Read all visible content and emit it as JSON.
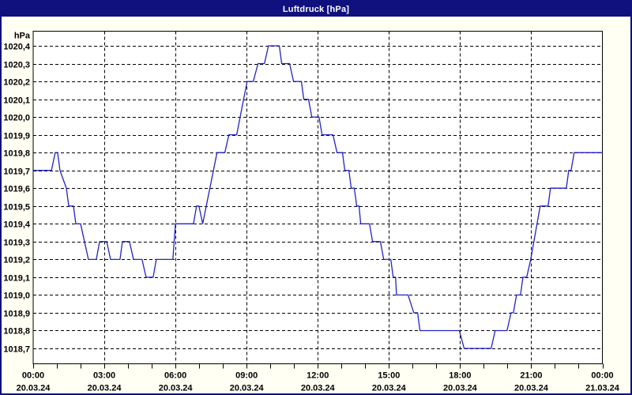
{
  "window": {
    "title": "Luftdruck [hPa]"
  },
  "colors": {
    "titlebar_bg": "#10107e",
    "frame_border": "#10107e",
    "line": "#2222c8",
    "grid": "#000000",
    "plot_bg": "#ffffff",
    "page_bg": "#fffff4",
    "title_text": "#ffffff",
    "label_text": "#000000"
  },
  "chart_data": {
    "type": "line",
    "title": "Luftdruck [hPa]",
    "unit_label": "hPa",
    "xlabel": "",
    "ylabel": "hPa",
    "ylim": [
      1018.7,
      1020.4
    ],
    "xlim_hours": [
      0,
      24
    ],
    "grid": "dashed",
    "legend": "none",
    "yticks": [
      {
        "value": 1020.4,
        "label": "1020,4"
      },
      {
        "value": 1020.3,
        "label": "1020,3"
      },
      {
        "value": 1020.2,
        "label": "1020,2"
      },
      {
        "value": 1020.1,
        "label": "1020,1"
      },
      {
        "value": 1020.0,
        "label": "1020,0"
      },
      {
        "value": 1019.9,
        "label": "1019,9"
      },
      {
        "value": 1019.8,
        "label": "1019,8"
      },
      {
        "value": 1019.7,
        "label": "1019,7"
      },
      {
        "value": 1019.6,
        "label": "1019,6"
      },
      {
        "value": 1019.5,
        "label": "1019,5"
      },
      {
        "value": 1019.4,
        "label": "1019,4"
      },
      {
        "value": 1019.3,
        "label": "1019,3"
      },
      {
        "value": 1019.2,
        "label": "1019,2"
      },
      {
        "value": 1019.1,
        "label": "1019,1"
      },
      {
        "value": 1019.0,
        "label": "1019,0"
      },
      {
        "value": 1018.9,
        "label": "1018,9"
      },
      {
        "value": 1018.8,
        "label": "1018,8"
      },
      {
        "value": 1018.7,
        "label": "1018,7"
      }
    ],
    "xticks": [
      {
        "hour": 0,
        "time": "00:00",
        "date": "20.03.24"
      },
      {
        "hour": 3,
        "time": "03:00",
        "date": "20.03.24"
      },
      {
        "hour": 6,
        "time": "06:00",
        "date": "20.03.24"
      },
      {
        "hour": 9,
        "time": "09:00",
        "date": "20.03.24"
      },
      {
        "hour": 12,
        "time": "12:00",
        "date": "20.03.24"
      },
      {
        "hour": 15,
        "time": "15:00",
        "date": "20.03.24"
      },
      {
        "hour": 18,
        "time": "18:00",
        "date": "20.03.24"
      },
      {
        "hour": 21,
        "time": "21:00",
        "date": "20.03.24"
      },
      {
        "hour": 24,
        "time": "00:00",
        "date": "21.03.24"
      }
    ],
    "minor_tick_every_hours": 1,
    "vertical_grid_hours": [
      3,
      6,
      9,
      12,
      15,
      18,
      21
    ],
    "series": [
      {
        "name": "Luftdruck",
        "points": [
          [
            0.0,
            1019.7
          ],
          [
            0.77,
            1019.7
          ],
          [
            0.93,
            1019.8
          ],
          [
            1.03,
            1019.8
          ],
          [
            1.13,
            1019.7
          ],
          [
            1.4,
            1019.6
          ],
          [
            1.5,
            1019.5
          ],
          [
            1.7,
            1019.5
          ],
          [
            1.8,
            1019.4
          ],
          [
            2.0,
            1019.4
          ],
          [
            2.33,
            1019.2
          ],
          [
            2.66,
            1019.2
          ],
          [
            2.8,
            1019.3
          ],
          [
            3.1,
            1019.3
          ],
          [
            3.26,
            1019.2
          ],
          [
            3.66,
            1019.2
          ],
          [
            3.76,
            1019.3
          ],
          [
            4.06,
            1019.3
          ],
          [
            4.23,
            1019.2
          ],
          [
            4.59,
            1019.2
          ],
          [
            4.76,
            1019.1
          ],
          [
            5.06,
            1019.1
          ],
          [
            5.19,
            1019.2
          ],
          [
            5.89,
            1019.2
          ],
          [
            6.0,
            1019.4
          ],
          [
            6.76,
            1019.4
          ],
          [
            6.89,
            1019.5
          ],
          [
            6.99,
            1019.5
          ],
          [
            7.15,
            1019.4
          ],
          [
            7.75,
            1019.8
          ],
          [
            8.08,
            1019.8
          ],
          [
            8.25,
            1019.9
          ],
          [
            8.58,
            1019.9
          ],
          [
            9.02,
            1020.2
          ],
          [
            9.28,
            1020.2
          ],
          [
            9.48,
            1020.3
          ],
          [
            9.75,
            1020.3
          ],
          [
            9.92,
            1020.4
          ],
          [
            10.38,
            1020.4
          ],
          [
            10.48,
            1020.3
          ],
          [
            10.81,
            1020.3
          ],
          [
            10.98,
            1020.2
          ],
          [
            11.31,
            1020.2
          ],
          [
            11.41,
            1020.1
          ],
          [
            11.61,
            1020.1
          ],
          [
            11.75,
            1020.0
          ],
          [
            12.05,
            1020.0
          ],
          [
            12.18,
            1019.9
          ],
          [
            12.64,
            1019.9
          ],
          [
            12.81,
            1019.8
          ],
          [
            13.04,
            1019.8
          ],
          [
            13.14,
            1019.7
          ],
          [
            13.31,
            1019.7
          ],
          [
            13.41,
            1019.6
          ],
          [
            13.54,
            1019.6
          ],
          [
            13.64,
            1019.5
          ],
          [
            13.74,
            1019.5
          ],
          [
            13.81,
            1019.4
          ],
          [
            14.18,
            1019.4
          ],
          [
            14.31,
            1019.3
          ],
          [
            14.64,
            1019.3
          ],
          [
            14.78,
            1019.2
          ],
          [
            15.08,
            1019.2
          ],
          [
            15.18,
            1019.1
          ],
          [
            15.28,
            1019.1
          ],
          [
            15.32,
            1019.0
          ],
          [
            15.81,
            1019.0
          ],
          [
            16.05,
            1018.9
          ],
          [
            16.21,
            1018.9
          ],
          [
            16.31,
            1018.8
          ],
          [
            17.97,
            1018.8
          ],
          [
            18.17,
            1018.7
          ],
          [
            19.31,
            1018.7
          ],
          [
            19.48,
            1018.8
          ],
          [
            19.98,
            1018.8
          ],
          [
            20.15,
            1018.9
          ],
          [
            20.25,
            1018.9
          ],
          [
            20.38,
            1019.0
          ],
          [
            20.55,
            1019.0
          ],
          [
            20.65,
            1019.1
          ],
          [
            20.81,
            1019.1
          ],
          [
            20.98,
            1019.2
          ],
          [
            21.38,
            1019.5
          ],
          [
            21.71,
            1019.5
          ],
          [
            21.81,
            1019.6
          ],
          [
            22.48,
            1019.6
          ],
          [
            22.58,
            1019.7
          ],
          [
            22.68,
            1019.7
          ],
          [
            22.81,
            1019.8
          ],
          [
            24.0,
            1019.8
          ]
        ]
      }
    ]
  }
}
